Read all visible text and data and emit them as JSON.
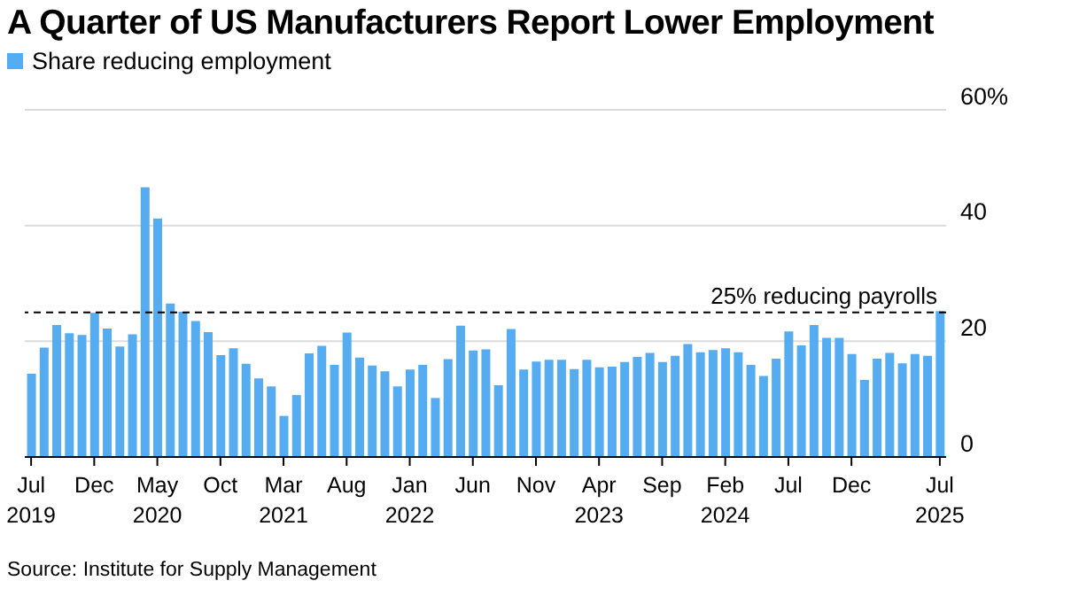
{
  "chart_data": {
    "type": "bar",
    "title": "A Quarter of US Manufacturers Report Lower Employment",
    "categories": [
      "Jul 2019",
      null,
      null,
      null,
      null,
      "Dec",
      null,
      null,
      null,
      null,
      "May 2020",
      null,
      null,
      null,
      null,
      "Oct",
      null,
      null,
      null,
      null,
      "Mar 2021",
      null,
      null,
      null,
      null,
      "Aug",
      null,
      null,
      null,
      null,
      "Jan 2022",
      null,
      null,
      null,
      null,
      "Jun",
      null,
      null,
      null,
      null,
      "Nov",
      null,
      null,
      null,
      null,
      "Apr 2023",
      null,
      null,
      null,
      null,
      "Sep",
      null,
      null,
      null,
      null,
      "Feb 2024",
      null,
      null,
      null,
      null,
      "Jul",
      null,
      null,
      null,
      null,
      "Dec",
      null,
      null,
      null,
      null,
      null,
      null,
      "Jul 2025"
    ],
    "series": [
      {
        "name": "Share reducing employment",
        "color": "#56acf0",
        "values": [
          14.4,
          18.9,
          22.8,
          21.4,
          21.1,
          24.9,
          22.2,
          19.1,
          21.2,
          46.6,
          41.2,
          26.5,
          25.1,
          23.5,
          21.6,
          17.6,
          18.8,
          16.1,
          13.6,
          12.2,
          7.1,
          10.7,
          17.9,
          19.2,
          15.9,
          21.5,
          17.2,
          15.8,
          14.8,
          12.2,
          15.1,
          15.9,
          10.2,
          16.9,
          22.7,
          18.4,
          18.6,
          12.4,
          22.1,
          15.1,
          16.5,
          16.8,
          16.8,
          15.2,
          16.8,
          15.5,
          15.6,
          16.4,
          17.3,
          18.0,
          16.4,
          17.5,
          19.5,
          18.1,
          18.5,
          18.8,
          18.1,
          15.9,
          14.0,
          17.0,
          21.7,
          19.3,
          22.8,
          20.6,
          20.6,
          17.8,
          13.3,
          17.0,
          18.0,
          16.2,
          17.8,
          17.5,
          25.2
        ]
      }
    ],
    "ylim": [
      0,
      60
    ],
    "yticks": [
      0,
      20,
      40,
      {
        "value": 60,
        "label": "60%"
      }
    ],
    "grid": "y",
    "legend": "top left",
    "ref_lines": [
      {
        "axis": "y",
        "value": 25,
        "label": "25% reducing payrolls",
        "line_style": "dashed",
        "color": "#000000"
      }
    ],
    "annotations": [
      "Source: Institute for Supply Management"
    ]
  }
}
